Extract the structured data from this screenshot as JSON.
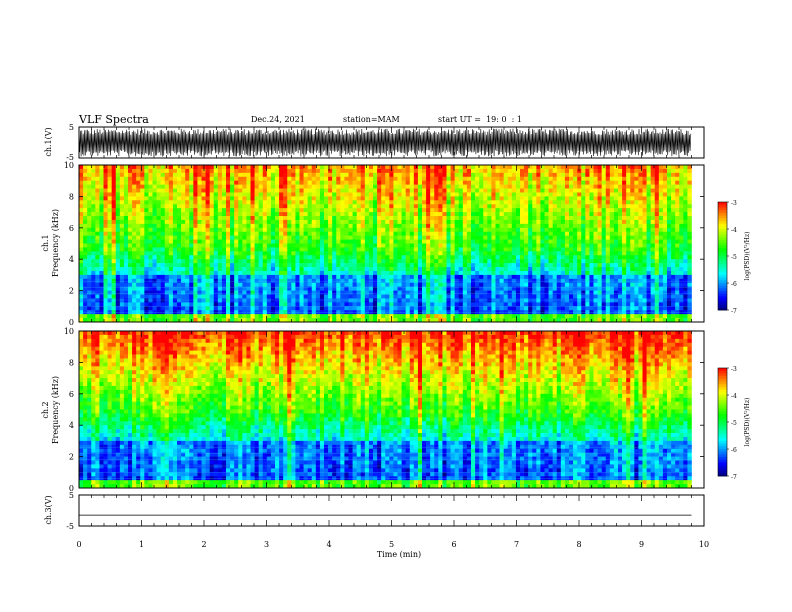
{
  "header": {
    "title": "VLF Spectra",
    "date": "Dec.24, 2021",
    "station": "station=MAM",
    "start": "start UT =  19: 0  : 1"
  },
  "colors": {
    "scale": [
      "#000080",
      "#0000ff",
      "#0080ff",
      "#00ffff",
      "#00ff80",
      "#00ff00",
      "#80ff00",
      "#ffff00",
      "#ff8000",
      "#ff0000",
      "#ffffff"
    ],
    "waveform": "#000000"
  },
  "chart_data": [
    {
      "type": "line",
      "panel": "ch1-waveform",
      "ylabel": "ch.1(V)",
      "ylim": [
        -5,
        5
      ],
      "yticks": [
        -5,
        5
      ],
      "xlim": [
        0,
        10
      ],
      "description_level": "dense oscillation filling most of range",
      "amplitude": 4.5
    },
    {
      "type": "heatmap",
      "panel": "ch1-spectrogram",
      "ylabel": "ch.1\nFrequency (kHz)",
      "ylabel_line1": "ch.1",
      "ylabel_line2": "Frequency (kHz)",
      "ylim": [
        0,
        10
      ],
      "yticks": [
        0,
        2,
        4,
        6,
        8,
        10
      ],
      "xlim": [
        0,
        10
      ],
      "colorbar": {
        "label": "log(PSD)(V²/Hz)",
        "range": [
          -7,
          -3
        ],
        "ticks": [
          "-3",
          "-4",
          "-5",
          "-6",
          "-7"
        ]
      }
    },
    {
      "type": "heatmap",
      "panel": "ch2-spectrogram",
      "ylabel": "ch.2\nFrequency (kHz)",
      "ylabel_line1": "ch.2",
      "ylabel_line2": "Frequency (kHz)",
      "ylim": [
        0,
        10
      ],
      "yticks": [
        0,
        2,
        4,
        6,
        8,
        10
      ],
      "xlim": [
        0,
        10
      ],
      "colorbar": {
        "label": "log(PSD)(V²/Hz)",
        "range": [
          -7,
          -3
        ],
        "ticks": [
          "-3",
          "-4",
          "-5",
          "-6",
          "-7"
        ]
      }
    },
    {
      "type": "line",
      "panel": "ch3-waveform",
      "ylabel": "ch.3(V)",
      "ylim": [
        -5,
        5
      ],
      "yticks": [
        -5,
        5
      ],
      "xlim": [
        0,
        10
      ],
      "x": [
        0,
        9.8
      ],
      "y": [
        -1.5,
        -1.5
      ]
    }
  ],
  "xaxis": {
    "label": "Time (min)",
    "ticks": [
      "0",
      "1",
      "2",
      "3",
      "4",
      "5",
      "6",
      "7",
      "8",
      "9",
      "10"
    ]
  }
}
